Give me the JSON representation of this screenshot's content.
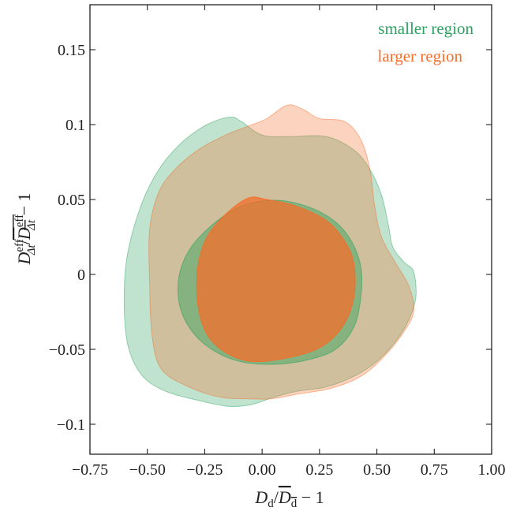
{
  "chart_data": {
    "type": "area",
    "title": "",
    "xlabel": "D_d/̅D_d − 1",
    "ylabel": "D_Δt^eff/̅D_Δt^eff − 1",
    "xlim": [
      -0.75,
      1.0
    ],
    "ylim": [
      -0.12,
      0.18
    ],
    "xticks": [
      -0.75,
      -0.5,
      -0.25,
      0.0,
      0.25,
      0.5,
      0.75,
      1.0
    ],
    "xtick_labels": [
      "−0.75",
      "−0.50",
      "−0.25",
      "0.00",
      "0.25",
      "0.50",
      "0.75",
      "1.00"
    ],
    "yticks": [
      -0.1,
      -0.05,
      0,
      0.05,
      0.1,
      0.15
    ],
    "ytick_labels": [
      "−0.1",
      "−0.05",
      "0",
      "0.05",
      "0.1",
      "0.15"
    ],
    "legend_position": "top-right",
    "grid": false,
    "series": [
      {
        "name": "smaller region",
        "color": "#2ca25f",
        "contours": [
          {
            "level": "outer",
            "opacity": 0.3,
            "points": [
              [
                -0.14,
                0.105
              ],
              [
                -0.09,
                0.102
              ],
              [
                0.0,
                0.093
              ],
              [
                0.12,
                0.092
              ],
              [
                0.28,
                0.092
              ],
              [
                0.4,
                0.083
              ],
              [
                0.47,
                0.07
              ],
              [
                0.52,
                0.053
              ],
              [
                0.55,
                0.033
              ],
              [
                0.57,
                0.018
              ],
              [
                0.62,
                0.008
              ],
              [
                0.66,
                0.002
              ],
              [
                0.67,
                -0.015
              ],
              [
                0.64,
                -0.03
              ],
              [
                0.58,
                -0.045
              ],
              [
                0.5,
                -0.058
              ],
              [
                0.4,
                -0.068
              ],
              [
                0.28,
                -0.075
              ],
              [
                0.15,
                -0.078
              ],
              [
                0.05,
                -0.082
              ],
              [
                -0.05,
                -0.087
              ],
              [
                -0.15,
                -0.088
              ],
              [
                -0.28,
                -0.084
              ],
              [
                -0.42,
                -0.078
              ],
              [
                -0.52,
                -0.068
              ],
              [
                -0.58,
                -0.05
              ],
              [
                -0.6,
                -0.025
              ],
              [
                -0.59,
                0.01
              ],
              [
                -0.53,
                0.045
              ],
              [
                -0.45,
                0.07
              ],
              [
                -0.35,
                0.088
              ],
              [
                -0.24,
                0.1
              ]
            ]
          },
          {
            "level": "inner",
            "opacity": 0.45,
            "points": [
              [
                0.0,
                0.049
              ],
              [
                0.1,
                0.049
              ],
              [
                0.22,
                0.044
              ],
              [
                0.32,
                0.035
              ],
              [
                0.39,
                0.022
              ],
              [
                0.43,
                0.005
              ],
              [
                0.43,
                -0.015
              ],
              [
                0.4,
                -0.035
              ],
              [
                0.32,
                -0.05
              ],
              [
                0.2,
                -0.057
              ],
              [
                0.05,
                -0.06
              ],
              [
                -0.1,
                -0.058
              ],
              [
                -0.22,
                -0.05
              ],
              [
                -0.31,
                -0.037
              ],
              [
                -0.36,
                -0.02
              ],
              [
                -0.36,
                0.0
              ],
              [
                -0.31,
                0.018
              ],
              [
                -0.21,
                0.034
              ],
              [
                -0.1,
                0.045
              ]
            ]
          }
        ]
      },
      {
        "name": "larger region",
        "color": "#f46d29",
        "contours": [
          {
            "level": "outer",
            "opacity": 0.3,
            "points": [
              [
                0.11,
                0.113
              ],
              [
                0.18,
                0.11
              ],
              [
                0.25,
                0.104
              ],
              [
                0.36,
                0.102
              ],
              [
                0.43,
                0.09
              ],
              [
                0.47,
                0.07
              ],
              [
                0.49,
                0.046
              ],
              [
                0.52,
                0.025
              ],
              [
                0.58,
                0.008
              ],
              [
                0.64,
                -0.008
              ],
              [
                0.66,
                -0.025
              ],
              [
                0.61,
                -0.04
              ],
              [
                0.53,
                -0.055
              ],
              [
                0.43,
                -0.068
              ],
              [
                0.3,
                -0.076
              ],
              [
                0.15,
                -0.08
              ],
              [
                0.04,
                -0.083
              ],
              [
                -0.05,
                -0.083
              ],
              [
                -0.18,
                -0.082
              ],
              [
                -0.32,
                -0.075
              ],
              [
                -0.44,
                -0.063
              ],
              [
                -0.48,
                -0.04
              ],
              [
                -0.49,
                -0.005
              ],
              [
                -0.49,
                0.03
              ],
              [
                -0.45,
                0.055
              ],
              [
                -0.38,
                0.07
              ],
              [
                -0.28,
                0.083
              ],
              [
                -0.16,
                0.093
              ],
              [
                -0.06,
                0.099
              ],
              [
                0.02,
                0.104
              ]
            ]
          },
          {
            "level": "inner",
            "opacity": 0.75,
            "points": [
              [
                -0.06,
                0.051
              ],
              [
                0.02,
                0.05
              ],
              [
                0.14,
                0.046
              ],
              [
                0.28,
                0.036
              ],
              [
                0.36,
                0.022
              ],
              [
                0.4,
                0.007
              ],
              [
                0.4,
                -0.015
              ],
              [
                0.35,
                -0.035
              ],
              [
                0.25,
                -0.049
              ],
              [
                0.1,
                -0.056
              ],
              [
                -0.05,
                -0.058
              ],
              [
                -0.16,
                -0.052
              ],
              [
                -0.24,
                -0.04
              ],
              [
                -0.28,
                -0.02
              ],
              [
                -0.28,
                0.005
              ],
              [
                -0.24,
                0.025
              ],
              [
                -0.16,
                0.04
              ]
            ]
          }
        ]
      }
    ]
  }
}
